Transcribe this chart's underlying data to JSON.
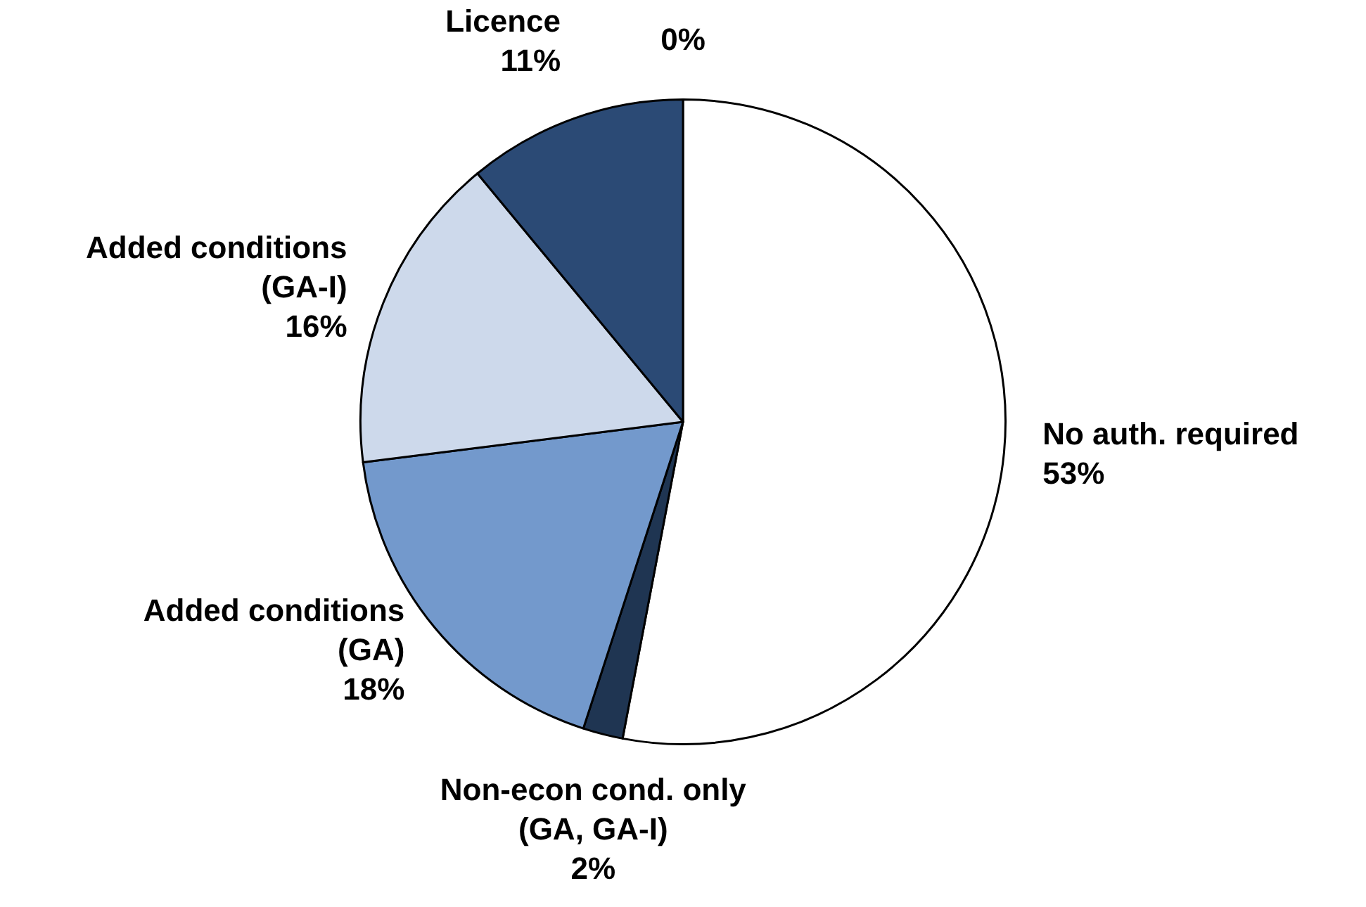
{
  "chart_data": {
    "type": "pie",
    "categories": [
      "No auth. required",
      "Non-econ cond. only (GA, GA-I)",
      "Added conditions (GA)",
      "Added conditions (GA-I)",
      "Licence",
      null
    ],
    "values": [
      53,
      2,
      18,
      16,
      11,
      0
    ],
    "value_labels": [
      "53%",
      "2%",
      "18%",
      "16%",
      "11%",
      "0%"
    ],
    "colors": [
      "#ffffff",
      "#1f3552",
      "#7399cc",
      "#cdd9eb",
      "#2b4a75",
      "#1f3552"
    ],
    "legend": false
  }
}
